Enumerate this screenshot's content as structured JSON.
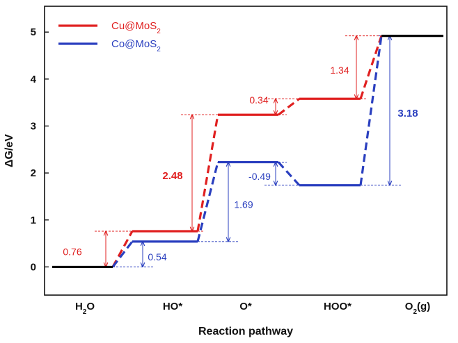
{
  "chart_data": {
    "type": "line",
    "title": "",
    "xlabel": "Reaction pathway",
    "ylabel": "ΔG/eV",
    "ylim": [
      -0.6,
      5.55
    ],
    "yticks": [
      "0",
      "1",
      "2",
      "3",
      "4",
      "5"
    ],
    "categories": [
      {
        "main": "H",
        "sub": "2",
        "tail": "O"
      },
      {
        "main": "HO*",
        "sub": "",
        "tail": ""
      },
      {
        "main": "O*",
        "sub": "",
        "tail": ""
      },
      {
        "main": "HOO*",
        "sub": "",
        "tail": ""
      },
      {
        "main": "O",
        "sub": "2",
        "tail": "(g)"
      }
    ],
    "grid": false,
    "legend_position": "top-left",
    "series": [
      {
        "name": "Cu@MoS",
        "name_sub": "2",
        "color": "#e02020",
        "values": [
          0,
          0.76,
          3.24,
          3.58,
          4.92
        ]
      },
      {
        "name": "Co@MoS",
        "name_sub": "2",
        "color": "#2a3fbf",
        "values": [
          0,
          0.54,
          2.23,
          1.74,
          4.92
        ]
      }
    ],
    "final_level_color": "#000000",
    "annotations": [
      {
        "text": "0.76",
        "series": 0,
        "step": 1,
        "bold": false
      },
      {
        "text": "2.48",
        "series": 0,
        "step": 2,
        "bold": true
      },
      {
        "text": "0.34",
        "series": 0,
        "step": 3,
        "bold": false
      },
      {
        "text": "1.34",
        "series": 0,
        "step": 4,
        "bold": false
      },
      {
        "text": "0.54",
        "series": 1,
        "step": 1,
        "bold": false
      },
      {
        "text": "1.69",
        "series": 1,
        "step": 2,
        "bold": false
      },
      {
        "text": "-0.49",
        "series": 1,
        "step": 3,
        "bold": false
      },
      {
        "text": "3.18",
        "series": 1,
        "step": 4,
        "bold": true
      }
    ]
  }
}
